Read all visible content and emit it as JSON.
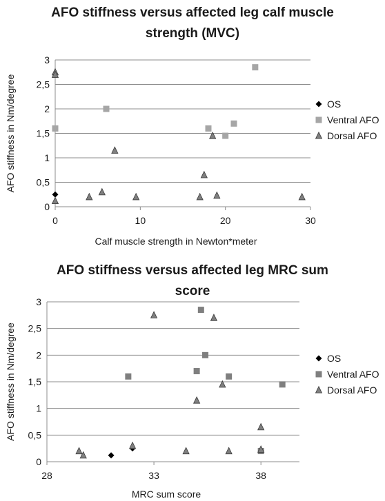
{
  "chart_data": [
    {
      "type": "scatter",
      "title_lines": [
        "AFO stiffness versus affected leg calf muscle",
        "strength (MVC)"
      ],
      "xlabel": "Calf muscle strength in Newton*meter",
      "ylabel": "AFO stiffness in Nm/degree",
      "xlim": [
        0,
        30
      ],
      "ylim": [
        0,
        3
      ],
      "x_ticks": [
        0,
        10,
        20,
        30
      ],
      "y_ticks": [
        0,
        0.5,
        1,
        1.5,
        2,
        2.5,
        3
      ],
      "y_tick_labels": [
        "0",
        "0,5",
        "1",
        "1,5",
        "2",
        "2,5",
        "3"
      ],
      "grid": "horizontal",
      "legend": "right",
      "series": [
        {
          "name": "OS",
          "marker": "diamond",
          "color": "#000000",
          "x": [
            0
          ],
          "y": [
            0.25
          ]
        },
        {
          "name": "Ventral AFO",
          "marker": "square",
          "color": "#a6a6a6",
          "x": [
            0,
            6,
            18,
            20,
            21,
            23.5
          ],
          "y": [
            1.6,
            2.0,
            1.6,
            1.45,
            1.7,
            2.85
          ]
        },
        {
          "name": "Dorsal AFO",
          "marker": "triangle",
          "color": "#7f7f7f",
          "x": [
            0,
            0,
            0,
            4,
            5.5,
            7,
            9.5,
            17,
            17.5,
            18.5,
            19,
            29
          ],
          "y": [
            2.75,
            2.7,
            0.12,
            0.2,
            0.3,
            1.15,
            0.2,
            0.2,
            0.65,
            1.45,
            0.23,
            0.2
          ]
        }
      ]
    },
    {
      "type": "scatter",
      "title_lines": [
        "AFO stiffness versus affected leg MRC sum",
        "score"
      ],
      "xlabel": "MRC sum score",
      "ylabel": "AFO stiffness in Nm/degree",
      "xlim": [
        28,
        39.8
      ],
      "ylim": [
        0,
        3
      ],
      "x_ticks": [
        28,
        33,
        38
      ],
      "y_ticks": [
        0,
        0.5,
        1,
        1.5,
        2,
        2.5,
        3
      ],
      "y_tick_labels": [
        "0",
        "0,5",
        "1",
        "1,5",
        "2",
        "2,5",
        "3"
      ],
      "grid": "horizontal",
      "legend": "right",
      "series": [
        {
          "name": "OS",
          "marker": "diamond",
          "color": "#000000",
          "x": [
            31,
            32
          ],
          "y": [
            0.12,
            0.25
          ]
        },
        {
          "name": "Ventral AFO",
          "marker": "square",
          "color": "#7f7f7f",
          "x": [
            31.8,
            35,
            35.2,
            35.4,
            36.5,
            38,
            39
          ],
          "y": [
            1.6,
            1.7,
            2.85,
            2.0,
            1.6,
            0.2,
            1.45
          ]
        },
        {
          "name": "Dorsal AFO",
          "marker": "triangle",
          "color": "#7f7f7f",
          "x": [
            29.5,
            29.7,
            32,
            33,
            34.5,
            35,
            35.8,
            36.2,
            36.5,
            38,
            38
          ],
          "y": [
            0.2,
            0.12,
            0.3,
            2.75,
            0.2,
            1.15,
            2.7,
            1.45,
            0.2,
            0.65,
            0.23
          ]
        }
      ]
    }
  ]
}
